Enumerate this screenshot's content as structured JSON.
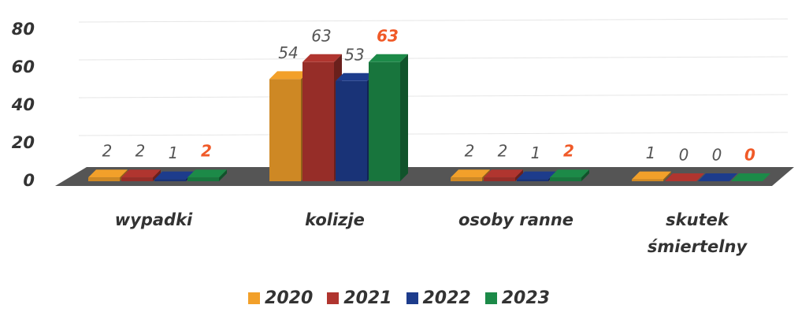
{
  "chart_data": {
    "type": "bar3d",
    "categories": [
      "wypadki",
      "kolizje",
      "osoby ranne",
      "skutek śmiertelny"
    ],
    "series": [
      {
        "name": "2020",
        "color": "#f2a02a",
        "values": [
          2,
          54,
          2,
          1
        ]
      },
      {
        "name": "2021",
        "color": "#b0352f",
        "values": [
          2,
          63,
          2,
          0
        ]
      },
      {
        "name": "2022",
        "color": "#1d3c8c",
        "values": [
          1,
          53,
          1,
          0
        ]
      },
      {
        "name": "2023",
        "color": "#1c8a48",
        "values": [
          2,
          63,
          2,
          0
        ]
      }
    ],
    "highlight_color": "#f05a28",
    "ylim": [
      0,
      80
    ],
    "yticks": [
      0,
      20,
      40,
      60,
      80
    ],
    "grid": true,
    "legend": "bottom"
  }
}
